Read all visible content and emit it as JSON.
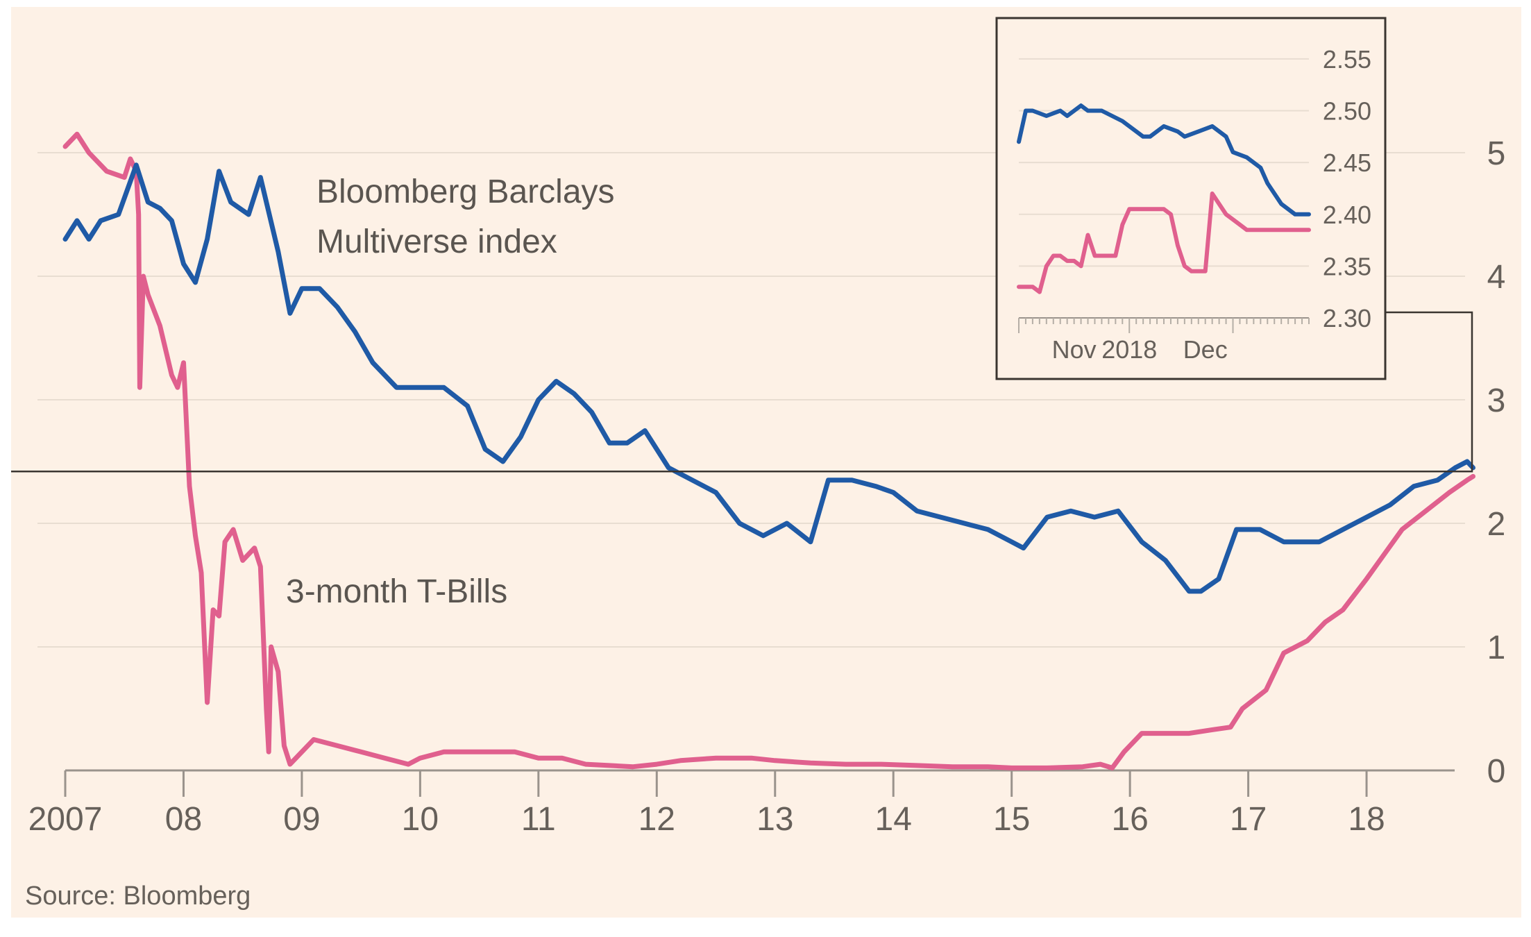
{
  "chart_data": {
    "main": {
      "type": "line",
      "source": "Source: Bloomberg",
      "x_tick_labels": [
        "2007",
        "08",
        "09",
        "10",
        "11",
        "12",
        "13",
        "14",
        "15",
        "16",
        "17",
        "18"
      ],
      "x_tick_years": [
        2007,
        2008,
        2009,
        2010,
        2011,
        2012,
        2013,
        2014,
        2015,
        2016,
        2017,
        2018
      ],
      "y_ticks": [
        0,
        1,
        2,
        3,
        4,
        5
      ],
      "y_tick_labels": [
        "0",
        "1",
        "2",
        "3",
        "4",
        "5"
      ],
      "xlim": [
        2007.0,
        2018.95
      ],
      "ylim": [
        0,
        5.5
      ],
      "grid": true,
      "y_axis_side": "right",
      "series": [
        {
          "name": "Bloomberg Barclays Multiverse index",
          "label_lines": [
            "Bloomberg Barclays",
            "Multiverse index"
          ],
          "color": "#1f5aa6",
          "x": [
            2007.0,
            2007.1,
            2007.2,
            2007.3,
            2007.45,
            2007.6,
            2007.7,
            2007.8,
            2007.9,
            2008.0,
            2008.1,
            2008.2,
            2008.3,
            2008.4,
            2008.55,
            2008.65,
            2008.8,
            2008.9,
            2009.0,
            2009.15,
            2009.3,
            2009.45,
            2009.6,
            2009.8,
            2010.0,
            2010.2,
            2010.4,
            2010.55,
            2010.7,
            2010.85,
            2011.0,
            2011.15,
            2011.3,
            2011.45,
            2011.6,
            2011.75,
            2011.9,
            2012.1,
            2012.3,
            2012.5,
            2012.7,
            2012.9,
            2013.1,
            2013.3,
            2013.45,
            2013.65,
            2013.85,
            2014.0,
            2014.2,
            2014.4,
            2014.6,
            2014.8,
            2015.0,
            2015.1,
            2015.3,
            2015.5,
            2015.7,
            2015.9,
            2016.1,
            2016.3,
            2016.5,
            2016.6,
            2016.75,
            2016.9,
            2017.1,
            2017.3,
            2017.45,
            2017.6,
            2017.8,
            2018.0,
            2018.2,
            2018.4,
            2018.6,
            2018.75,
            2018.85,
            2018.9
          ],
          "y": [
            4.3,
            4.45,
            4.3,
            4.45,
            4.5,
            4.9,
            4.6,
            4.55,
            4.45,
            4.1,
            3.95,
            4.3,
            4.85,
            4.6,
            4.5,
            4.8,
            4.2,
            3.7,
            3.9,
            3.9,
            3.75,
            3.55,
            3.3,
            3.1,
            3.1,
            3.1,
            2.95,
            2.6,
            2.5,
            2.7,
            3.0,
            3.15,
            3.05,
            2.9,
            2.65,
            2.65,
            2.75,
            2.45,
            2.35,
            2.25,
            2.0,
            1.9,
            2.0,
            1.85,
            2.35,
            2.35,
            2.3,
            2.25,
            2.1,
            2.05,
            2.0,
            1.95,
            1.85,
            1.8,
            2.05,
            2.1,
            2.05,
            2.1,
            1.85,
            1.7,
            1.45,
            1.45,
            1.55,
            1.95,
            1.95,
            1.85,
            1.85,
            1.85,
            1.95,
            2.05,
            2.15,
            2.3,
            2.35,
            2.45,
            2.5,
            2.45
          ]
        },
        {
          "name": "3-month T-Bills",
          "label_lines": [
            "3-month T-Bills"
          ],
          "color": "#e0608e",
          "x": [
            2007.0,
            2007.1,
            2007.2,
            2007.35,
            2007.5,
            2007.55,
            2007.6,
            2007.62,
            2007.63,
            2007.66,
            2007.7,
            2007.8,
            2007.9,
            2007.95,
            2008.0,
            2008.05,
            2008.1,
            2008.15,
            2008.2,
            2008.25,
            2008.3,
            2008.35,
            2008.42,
            2008.5,
            2008.6,
            2008.65,
            2008.7,
            2008.72,
            2008.74,
            2008.8,
            2008.85,
            2008.9,
            2009.0,
            2009.1,
            2009.3,
            2009.5,
            2009.7,
            2009.9,
            2010.0,
            2010.2,
            2010.4,
            2010.6,
            2010.8,
            2011.0,
            2011.2,
            2011.4,
            2011.6,
            2011.8,
            2012.0,
            2012.2,
            2012.5,
            2012.8,
            2013.0,
            2013.3,
            2013.6,
            2013.9,
            2014.2,
            2014.5,
            2014.8,
            2015.0,
            2015.3,
            2015.6,
            2015.75,
            2015.85,
            2015.95,
            2016.1,
            2016.3,
            2016.5,
            2016.7,
            2016.85,
            2016.95,
            2017.15,
            2017.3,
            2017.5,
            2017.65,
            2017.8,
            2018.0,
            2018.15,
            2018.3,
            2018.5,
            2018.7,
            2018.85,
            2018.9
          ],
          "y": [
            5.05,
            5.15,
            5.0,
            4.85,
            4.8,
            4.95,
            4.85,
            4.5,
            3.1,
            4.0,
            3.85,
            3.6,
            3.2,
            3.1,
            3.3,
            2.3,
            1.9,
            1.6,
            0.55,
            1.3,
            1.25,
            1.85,
            1.95,
            1.7,
            1.8,
            1.65,
            0.5,
            0.15,
            1.0,
            0.8,
            0.2,
            0.05,
            0.15,
            0.25,
            0.2,
            0.15,
            0.1,
            0.05,
            0.1,
            0.15,
            0.15,
            0.15,
            0.15,
            0.1,
            0.1,
            0.05,
            0.04,
            0.03,
            0.05,
            0.08,
            0.1,
            0.1,
            0.08,
            0.06,
            0.05,
            0.05,
            0.04,
            0.03,
            0.03,
            0.02,
            0.02,
            0.03,
            0.05,
            0.02,
            0.15,
            0.3,
            0.3,
            0.3,
            0.33,
            0.35,
            0.5,
            0.65,
            0.95,
            1.05,
            1.2,
            1.3,
            1.55,
            1.75,
            1.95,
            2.1,
            2.25,
            2.35,
            2.38
          ]
        }
      ]
    },
    "inset": {
      "type": "line",
      "y_ticks": [
        2.3,
        2.35,
        2.4,
        2.45,
        2.5,
        2.55
      ],
      "y_tick_labels": [
        "2.30",
        "2.35",
        "2.40",
        "2.45",
        "2.50",
        "2.55"
      ],
      "ylim": [
        2.3,
        2.56
      ],
      "xlim": [
        0,
        42
      ],
      "x_tick_labels": [
        {
          "label": "Nov",
          "x": 8
        },
        {
          "label": "2018",
          "x": 16
        },
        {
          "label": "Dec",
          "x": 27
        }
      ],
      "grid": true,
      "series": [
        {
          "color": "#1f5aa6",
          "x": [
            0,
            1,
            2,
            4,
            6,
            7,
            9,
            10,
            12,
            15,
            18,
            19,
            21,
            23,
            24,
            26,
            28,
            30,
            31,
            33,
            35,
            36,
            38,
            40,
            42
          ],
          "y": [
            2.47,
            2.5,
            2.5,
            2.495,
            2.5,
            2.495,
            2.505,
            2.5,
            2.5,
            2.49,
            2.475,
            2.475,
            2.485,
            2.48,
            2.475,
            2.48,
            2.485,
            2.475,
            2.46,
            2.455,
            2.445,
            2.43,
            2.41,
            2.4,
            2.4
          ]
        },
        {
          "color": "#e0608e",
          "x": [
            0,
            1,
            2,
            3,
            4,
            5,
            6,
            7,
            8,
            9,
            10,
            11,
            12,
            13,
            14,
            15,
            16,
            17,
            18,
            20,
            21,
            22,
            23,
            24,
            25,
            26,
            27,
            28,
            29,
            30,
            31,
            32,
            33,
            34,
            35,
            36,
            37,
            38,
            39,
            40,
            41,
            42
          ],
          "y": [
            2.33,
            2.33,
            2.33,
            2.325,
            2.35,
            2.36,
            2.36,
            2.355,
            2.355,
            2.35,
            2.38,
            2.36,
            2.36,
            2.36,
            2.36,
            2.39,
            2.405,
            2.405,
            2.405,
            2.405,
            2.405,
            2.4,
            2.37,
            2.35,
            2.345,
            2.345,
            2.345,
            2.42,
            2.41,
            2.4,
            2.395,
            2.39,
            2.385,
            2.385,
            2.385,
            2.385,
            2.385,
            2.385,
            2.385,
            2.385,
            2.385,
            2.385
          ]
        }
      ]
    }
  }
}
